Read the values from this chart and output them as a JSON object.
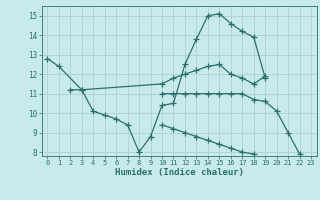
{
  "background_color": "#c8eaea",
  "grid_color": "#b0d0d0",
  "line_color": "#2a7070",
  "xlabel": "Humidex (Indice chaleur)",
  "xlim": [
    -0.5,
    23.5
  ],
  "ylim": [
    7.8,
    15.5
  ],
  "yticks": [
    8,
    9,
    10,
    11,
    12,
    13,
    14,
    15
  ],
  "xticks": [
    0,
    1,
    2,
    3,
    4,
    5,
    6,
    7,
    8,
    9,
    10,
    11,
    12,
    13,
    14,
    15,
    16,
    17,
    18,
    19,
    20,
    21,
    22,
    23
  ],
  "series": [
    {
      "x": [
        0,
        1,
        3,
        4,
        5,
        6,
        7,
        8,
        9,
        10,
        11,
        12,
        13,
        14,
        15,
        16,
        17,
        18,
        19
      ],
      "y": [
        12.8,
        12.4,
        11.2,
        10.1,
        9.9,
        9.7,
        9.4,
        8.0,
        8.8,
        10.4,
        10.5,
        12.5,
        13.8,
        15.0,
        15.1,
        14.6,
        14.2,
        13.9,
        11.8
      ]
    },
    {
      "x": [
        2,
        3,
        10,
        11,
        12,
        13,
        14,
        15,
        16,
        17,
        18,
        19
      ],
      "y": [
        11.2,
        11.2,
        11.5,
        11.8,
        12.0,
        12.2,
        12.4,
        12.5,
        12.0,
        11.8,
        11.5,
        11.9
      ]
    },
    {
      "x": [
        10,
        11,
        12,
        13,
        14,
        15,
        16,
        17,
        18,
        19,
        20,
        21,
        22
      ],
      "y": [
        11.0,
        11.0,
        11.0,
        11.0,
        11.0,
        11.0,
        11.0,
        11.0,
        10.7,
        10.6,
        10.1,
        9.0,
        7.9
      ]
    },
    {
      "x": [
        10,
        11,
        12,
        13,
        14,
        15,
        16,
        17,
        18
      ],
      "y": [
        9.4,
        9.2,
        9.0,
        8.8,
        8.6,
        8.4,
        8.2,
        8.0,
        7.9
      ]
    }
  ]
}
